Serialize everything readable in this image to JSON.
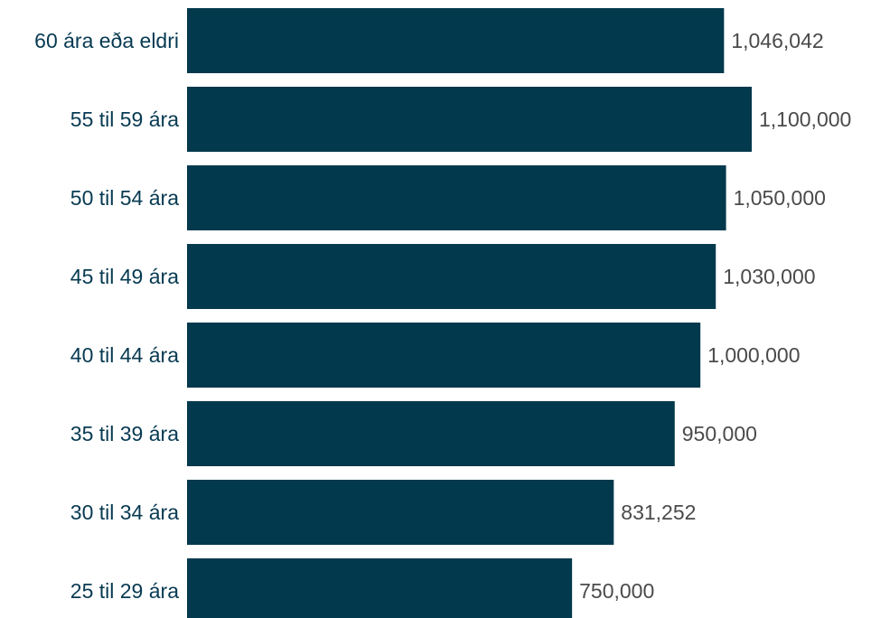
{
  "chart_data": {
    "type": "bar",
    "orientation": "horizontal",
    "title": "",
    "xlabel": "",
    "ylabel": "",
    "categories": [
      "60 ára eða eldri",
      "55 til 59 ára",
      "50 til 54 ára",
      "45 til 49 ára",
      "40 til 44 ára",
      "35 til 39 ára",
      "30 til 34 ára",
      "25 til 29 ára"
    ],
    "values": [
      1046042,
      1100000,
      1050000,
      1030000,
      1000000,
      950000,
      831252,
      750000
    ],
    "value_labels": [
      "1,046,042",
      "1,100,000",
      "1,050,000",
      "1,030,000",
      "1,000,000",
      "950,000",
      "831,252",
      "750,000"
    ],
    "xlim": [
      0,
      1100000
    ],
    "grid": false,
    "legend": "none",
    "colors": {
      "bar": "#02394d",
      "category_text": "#073a52",
      "value_text": "#4a4a4a"
    }
  }
}
